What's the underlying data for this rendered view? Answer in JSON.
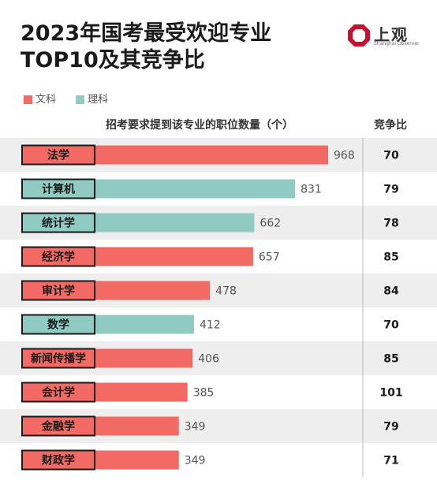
{
  "title": "2023年国考最受欢迎专业TOP10及其竞争比",
  "logo": {
    "text": "上观",
    "subtitle": "Shanghai Observer"
  },
  "colors": {
    "liberal_arts": "#f26a63",
    "science": "#8fcbc3",
    "row_stripe": "#eeeeee"
  },
  "chart_data": {
    "type": "bar",
    "orientation": "horizontal",
    "value_header": "招考要求提到该专业的职位数量（个）",
    "ratio_header": "竞争比",
    "legend": [
      {
        "name": "文科",
        "color": "#f26a63"
      },
      {
        "name": "理科",
        "color": "#8fcbc3"
      }
    ],
    "categories": [
      "法学",
      "计算机",
      "统计学",
      "经济学",
      "审计学",
      "数学",
      "新闻传播学",
      "会计学",
      "金融学",
      "财政学"
    ],
    "values": [
      968,
      831,
      662,
      657,
      478,
      412,
      406,
      385,
      349,
      349
    ],
    "value_labels": [
      "968",
      "831",
      "662",
      "657",
      "478",
      "412",
      "406",
      "385",
      "349",
      "349"
    ],
    "group": [
      "文科",
      "理科",
      "理科",
      "文科",
      "文科",
      "理科",
      "文科",
      "文科",
      "文科",
      "文科"
    ],
    "competition_ratio": [
      "70",
      "79",
      "78",
      "85",
      "84",
      "70",
      "85",
      "101",
      "79",
      "71"
    ],
    "xlim": [
      0,
      968
    ],
    "grid": false,
    "legend_position": "top-left"
  }
}
